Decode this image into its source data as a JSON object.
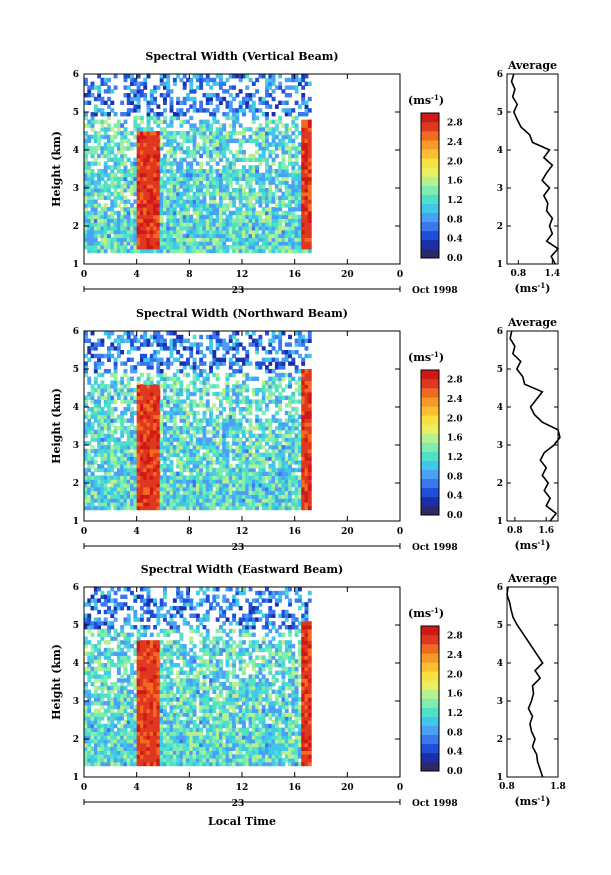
{
  "figure": {
    "xlabel": "Local Time",
    "date_label": "Oct 1998",
    "day_label": "23",
    "colorbar_unit": "(ms",
    "colorbar_unit_sup": "-1",
    "colorbar_unit_close": ")",
    "average_title": "Average",
    "average_xlabel": "(ms",
    "average_xlabel_sup": "-1",
    "average_xlabel_close": ")",
    "ylabel": "Height (km)",
    "colorscale": [
      "#2a2a6a",
      "#1a2fa8",
      "#1f4fd8",
      "#3a78f0",
      "#4aa0f5",
      "#40c8e8",
      "#50e0c8",
      "#80ecb0",
      "#b8f090",
      "#e8f060",
      "#f8e040",
      "#f8c030",
      "#f89a28",
      "#f06a20",
      "#e03820",
      "#d01818"
    ]
  },
  "chart_data": [
    {
      "type": "heatmap",
      "title": "Spectral Width (Vertical Beam)",
      "x_ticks": [
        "0",
        "4",
        "8",
        "12",
        "16",
        "20",
        "0"
      ],
      "xlim": [
        0,
        24
      ],
      "y_ticks": [
        "1",
        "2",
        "3",
        "4",
        "5",
        "6"
      ],
      "ylim": [
        1,
        6
      ],
      "colorbar_ticks": [
        "0.0",
        "0.4",
        "0.8",
        "1.2",
        "1.6",
        "2.0",
        "2.4",
        "2.8"
      ],
      "colorbar_range": [
        0.0,
        3.0
      ],
      "data_time_range": [
        0,
        17.2
      ],
      "bands": [
        {
          "t": [
            3.8,
            5.6
          ],
          "h": [
            1.4,
            4.5
          ],
          "value": 2.9
        },
        {
          "t": [
            16.3,
            17.2
          ],
          "h": [
            1.4,
            4.7
          ],
          "value": 2.9
        }
      ],
      "average_profile": {
        "xlim": [
          0.6,
          1.5
        ],
        "x_ticks": [
          "0.8",
          "1.4"
        ],
        "heights": [
          1.0,
          1.2,
          1.4,
          1.6,
          1.8,
          2.0,
          2.2,
          2.4,
          2.6,
          2.8,
          3.0,
          3.2,
          3.4,
          3.6,
          3.8,
          4.0,
          4.2,
          4.4,
          4.6,
          4.8,
          5.0,
          5.2,
          5.4,
          5.6,
          5.8,
          6.0
        ],
        "values": [
          1.45,
          1.38,
          1.5,
          1.3,
          1.4,
          1.35,
          1.4,
          1.3,
          1.32,
          1.25,
          1.35,
          1.22,
          1.3,
          1.4,
          1.25,
          1.35,
          1.05,
          1.0,
          0.85,
          0.78,
          0.72,
          0.78,
          0.7,
          0.74,
          0.68,
          0.72
        ]
      }
    },
    {
      "type": "heatmap",
      "title": "Spectral Width (Northward Beam)",
      "x_ticks": [
        "0",
        "4",
        "8",
        "12",
        "16",
        "20",
        "0"
      ],
      "xlim": [
        0,
        24
      ],
      "y_ticks": [
        "1",
        "2",
        "3",
        "4",
        "5",
        "6"
      ],
      "ylim": [
        1,
        6
      ],
      "colorbar_ticks": [
        "0.0",
        "0.4",
        "0.8",
        "1.2",
        "1.6",
        "2.0",
        "2.4",
        "2.8"
      ],
      "colorbar_range": [
        0.0,
        3.0
      ],
      "data_time_range": [
        0,
        17.2
      ],
      "bands": [
        {
          "t": [
            3.8,
            5.6
          ],
          "h": [
            1.3,
            4.6
          ],
          "value": 2.9
        },
        {
          "t": [
            16.3,
            17.2
          ],
          "h": [
            1.3,
            4.9
          ],
          "value": 2.9
        }
      ],
      "average_profile": {
        "xlim": [
          0.6,
          1.9
        ],
        "x_ticks": [
          "0.8",
          "1.6"
        ],
        "heights": [
          1.0,
          1.2,
          1.4,
          1.6,
          1.8,
          2.0,
          2.2,
          2.4,
          2.6,
          2.8,
          3.0,
          3.2,
          3.4,
          3.6,
          3.8,
          4.0,
          4.2,
          4.4,
          4.6,
          4.8,
          5.0,
          5.2,
          5.4,
          5.6,
          5.8,
          6.0
        ],
        "values": [
          1.7,
          1.85,
          1.6,
          1.7,
          1.55,
          1.65,
          1.5,
          1.6,
          1.45,
          1.55,
          1.8,
          1.95,
          1.9,
          1.5,
          1.3,
          1.2,
          1.35,
          1.5,
          1.05,
          1.0,
          0.85,
          0.95,
          0.75,
          0.8,
          0.68,
          0.72
        ]
      }
    },
    {
      "type": "heatmap",
      "title": "Spectral Width (Eastward Beam)",
      "x_ticks": [
        "0",
        "4",
        "8",
        "12",
        "16",
        "20",
        "0"
      ],
      "xlim": [
        0,
        24
      ],
      "y_ticks": [
        "1",
        "2",
        "3",
        "4",
        "5",
        "6"
      ],
      "ylim": [
        1,
        6
      ],
      "colorbar_ticks": [
        "0.0",
        "0.4",
        "0.8",
        "1.2",
        "1.6",
        "2.0",
        "2.4",
        "2.8"
      ],
      "colorbar_range": [
        0.0,
        3.0
      ],
      "data_time_range": [
        0,
        17.2
      ],
      "bands": [
        {
          "t": [
            3.8,
            5.6
          ],
          "h": [
            1.3,
            4.6
          ],
          "value": 2.9
        },
        {
          "t": [
            16.3,
            17.2
          ],
          "h": [
            1.3,
            5.0
          ],
          "value": 2.9
        }
      ],
      "average_profile": {
        "xlim": [
          0.8,
          1.8
        ],
        "x_ticks": [
          "0.8",
          "1.8"
        ],
        "heights": [
          1.0,
          1.2,
          1.4,
          1.6,
          1.8,
          2.0,
          2.2,
          2.4,
          2.6,
          2.8,
          3.0,
          3.2,
          3.4,
          3.6,
          3.8,
          4.0,
          4.2,
          4.4,
          4.6,
          4.8,
          5.0,
          5.2,
          5.4,
          5.6,
          5.8,
          6.0
        ],
        "values": [
          1.5,
          1.45,
          1.4,
          1.38,
          1.3,
          1.35,
          1.28,
          1.25,
          1.3,
          1.22,
          1.28,
          1.32,
          1.3,
          1.45,
          1.35,
          1.5,
          1.4,
          1.3,
          1.2,
          1.1,
          1.0,
          0.92,
          0.88,
          0.85,
          0.8,
          0.82
        ]
      }
    }
  ]
}
